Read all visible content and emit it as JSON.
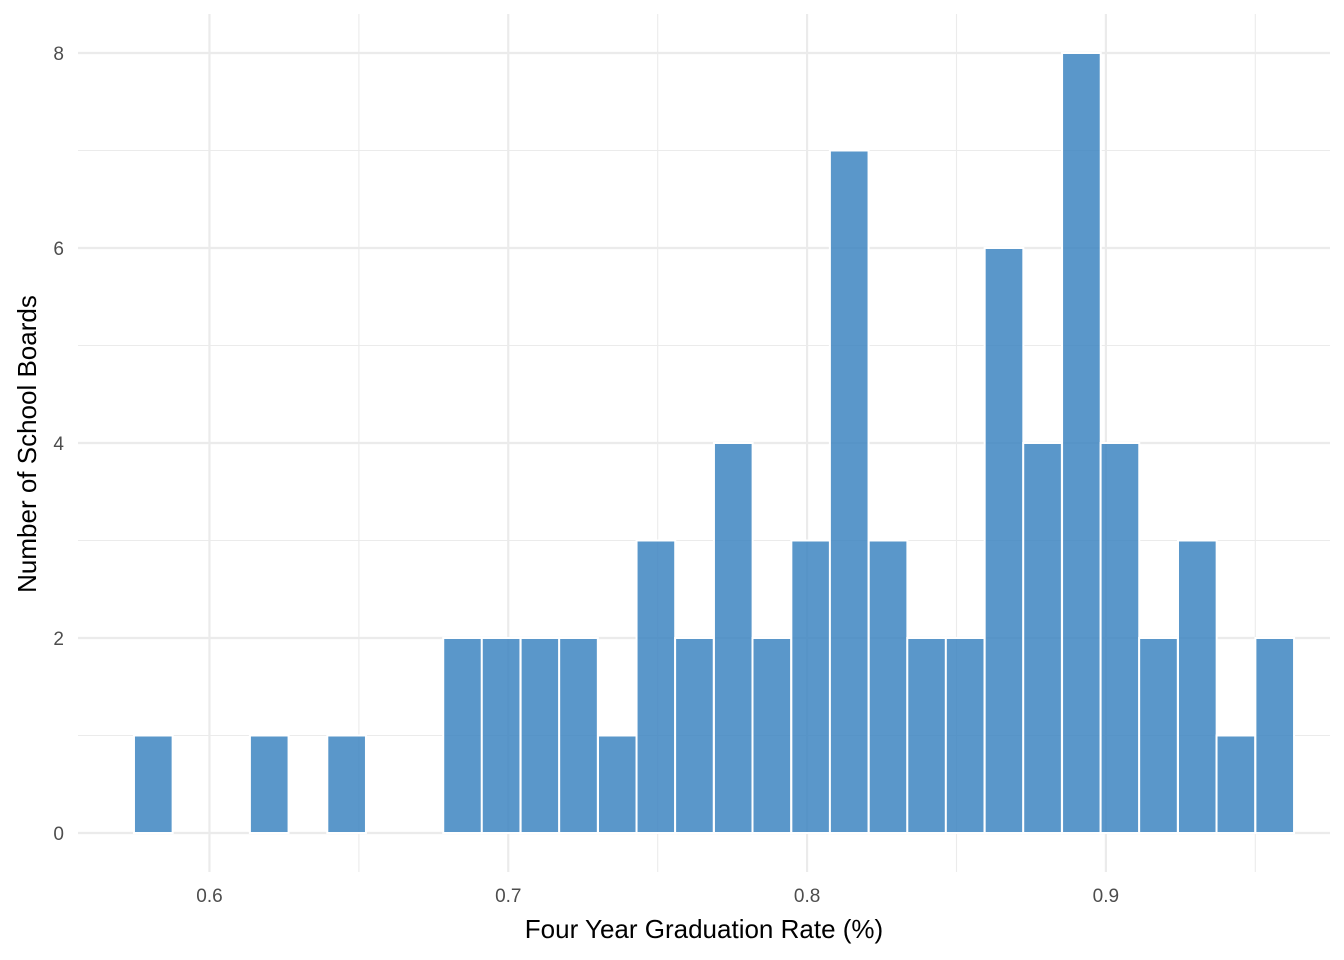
{
  "chart_data": {
    "type": "bar",
    "title": "",
    "xlabel": "Four Year Graduation Rate (%)",
    "ylabel": "Number of School Boards",
    "xlim": [
      0.556,
      0.975
    ],
    "ylim": [
      -0.4,
      8.4
    ],
    "x_ticks": [
      0.6,
      0.7,
      0.8,
      0.9
    ],
    "x_tick_labels": [
      "0.6",
      "0.7",
      "0.8",
      "0.9"
    ],
    "y_ticks": [
      0,
      2,
      4,
      6,
      8
    ],
    "y_tick_labels": [
      "0",
      "2",
      "4",
      "6",
      "8"
    ],
    "grid": true,
    "bar_color": "#3d85c1",
    "bin_width": 0.01294,
    "bins": [
      {
        "x": 0.5812,
        "count": 1
      },
      {
        "x": 0.5941,
        "count": 0
      },
      {
        "x": 0.607,
        "count": 0
      },
      {
        "x": 0.62,
        "count": 1
      },
      {
        "x": 0.6329,
        "count": 0
      },
      {
        "x": 0.6459,
        "count": 1
      },
      {
        "x": 0.6588,
        "count": 0
      },
      {
        "x": 0.6717,
        "count": 0
      },
      {
        "x": 0.6847,
        "count": 2
      },
      {
        "x": 0.6976,
        "count": 2
      },
      {
        "x": 0.7106,
        "count": 2
      },
      {
        "x": 0.7235,
        "count": 2
      },
      {
        "x": 0.7365,
        "count": 1
      },
      {
        "x": 0.7494,
        "count": 3
      },
      {
        "x": 0.7623,
        "count": 2
      },
      {
        "x": 0.7753,
        "count": 4
      },
      {
        "x": 0.7882,
        "count": 2
      },
      {
        "x": 0.8012,
        "count": 3
      },
      {
        "x": 0.8141,
        "count": 7
      },
      {
        "x": 0.8271,
        "count": 3
      },
      {
        "x": 0.84,
        "count": 2
      },
      {
        "x": 0.8529,
        "count": 2
      },
      {
        "x": 0.8659,
        "count": 6
      },
      {
        "x": 0.8788,
        "count": 4
      },
      {
        "x": 0.8918,
        "count": 8
      },
      {
        "x": 0.9047,
        "count": 4
      },
      {
        "x": 0.9176,
        "count": 2
      },
      {
        "x": 0.9306,
        "count": 3
      },
      {
        "x": 0.9435,
        "count": 1
      },
      {
        "x": 0.9565,
        "count": 2
      }
    ]
  }
}
